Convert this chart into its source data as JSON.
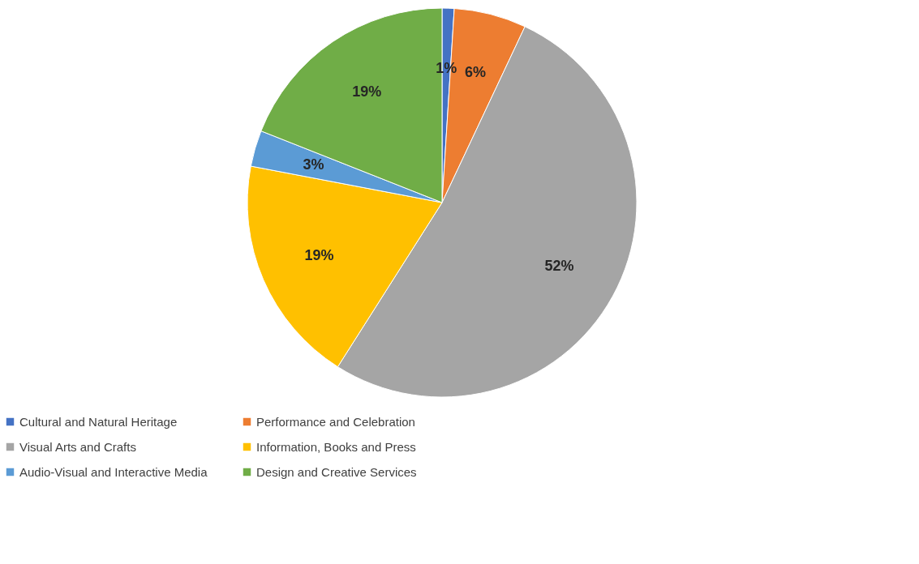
{
  "chart_data": {
    "type": "pie",
    "categories": [
      "Cultural and Natural Heritage",
      "Performance and Celebration",
      "Visual Arts and Crafts",
      "Information, Books and Press",
      "Audio-Visual and Interactive Media",
      "Design and Creative Services"
    ],
    "values": [
      1,
      6,
      52,
      19,
      3,
      19
    ],
    "colors": [
      "#4472c4",
      "#ed7d31",
      "#a5a5a5",
      "#ffc000",
      "#5b9bd5",
      "#70ad47"
    ],
    "value_labels": [
      "1%",
      "6%",
      "52%",
      "19%",
      "3%",
      "19%"
    ],
    "legend": "bottom"
  }
}
